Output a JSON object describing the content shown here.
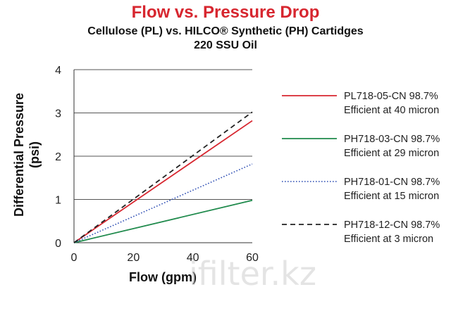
{
  "chart_data": {
    "type": "line",
    "title": "Flow vs. Pressure Drop",
    "subtitle_lines": [
      "Cellulose (PL) vs. HILCO® Synthetic (PH) Cartidges",
      "220 SSU Oil"
    ],
    "xlabel": "Flow (gpm)",
    "ylabel_lines": [
      "Differential Pressure",
      "(psi)"
    ],
    "xlim": [
      0,
      60
    ],
    "ylim": [
      0,
      4
    ],
    "xticks": [
      0,
      20,
      40,
      60
    ],
    "yticks": [
      0,
      1,
      2,
      3,
      4
    ],
    "grid": "horizontal",
    "legend_position": "right",
    "series": [
      {
        "name": "PL718-05-CN 98.7%",
        "detail": "Efficient at 40 micron",
        "color": "#d7262f",
        "style": "solid",
        "x": [
          0,
          60
        ],
        "y": [
          0,
          2.82
        ]
      },
      {
        "name": "PH718-03-CN 98.7%",
        "detail": "Efficient at 29 micron",
        "color": "#1f8a4c",
        "style": "solid",
        "x": [
          0,
          60
        ],
        "y": [
          0,
          0.98
        ]
      },
      {
        "name": "PH718-01-CN 98.7%",
        "detail": "Efficient at 15 micron",
        "color": "#2f4fb4",
        "style": "dotted",
        "x": [
          0,
          60
        ],
        "y": [
          0,
          1.82
        ]
      },
      {
        "name": "PH718-12-CN 98.7%",
        "detail": "Efficient at 3 micron",
        "color": "#222222",
        "style": "dashed",
        "x": [
          0,
          60
        ],
        "y": [
          0,
          3.02
        ]
      }
    ]
  },
  "watermark": "ifilter.kz"
}
